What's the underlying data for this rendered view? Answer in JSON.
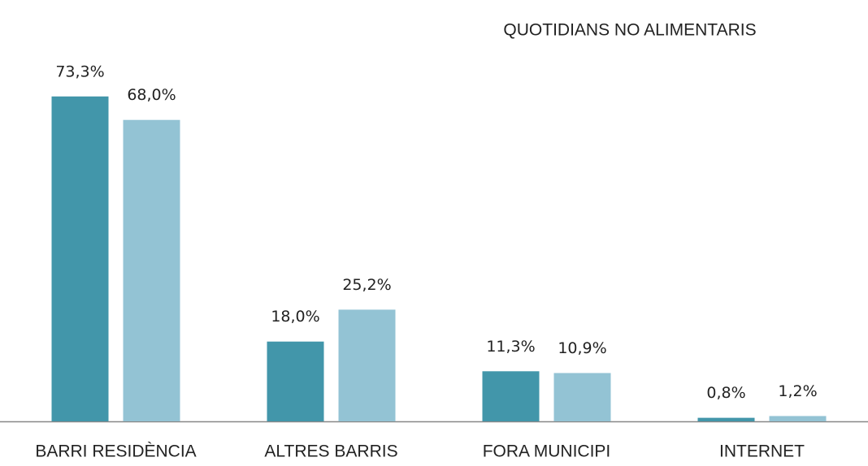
{
  "chart_data": {
    "type": "bar",
    "title": "QUOTIDIANS NO ALIMENTARIS",
    "categories": [
      "BARRI RESIDÈNCIA",
      "ALTRES BARRIS",
      "FORA MUNICIPI",
      "INTERNET"
    ],
    "series": [
      {
        "color": "#4296aa",
        "values": [
          73.3,
          18.0,
          11.3,
          0.8
        ],
        "value_labels": [
          "73,3%",
          "18,0%",
          "11,3%",
          "0,8%"
        ]
      },
      {
        "color": "#93c3d4",
        "values": [
          68.0,
          25.2,
          10.9,
          1.2
        ],
        "value_labels": [
          "68,0%",
          "25,2%",
          "10,9%",
          "1,2%"
        ]
      }
    ]
  }
}
